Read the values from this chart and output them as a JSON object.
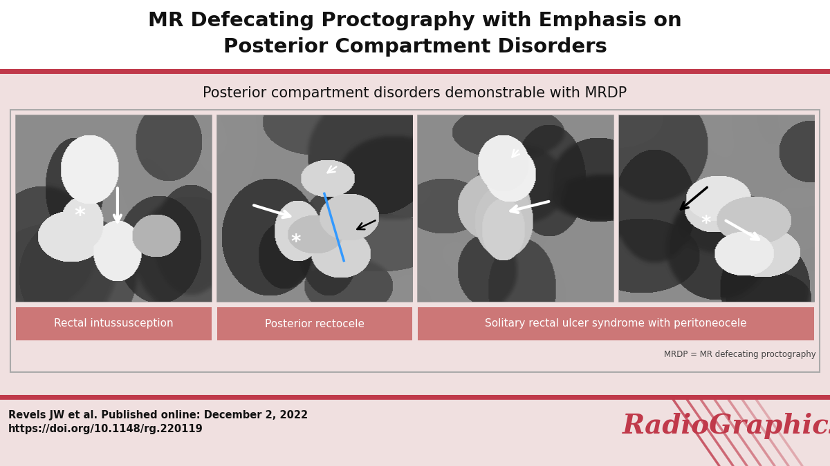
{
  "title_line1": "MR Defecating Proctography with Emphasis on",
  "title_line2": "Posterior Compartment Disorders",
  "subtitle": "Posterior compartment disorders demonstrable with MRDP",
  "bg_color": "#f0e0e0",
  "header_bg": "#ffffff",
  "title_color": "#111111",
  "red_bar_color": "#c0394a",
  "panel_border_color": "#999999",
  "label_bg_color": "#cc7777",
  "label_text_color": "#ffffff",
  "labels": [
    "Rectal intussusception",
    "Posterior rectocele",
    "Solitary rectal ulcer syndrome with peritoneocele"
  ],
  "footnote": "MRDP = MR defecating proctography",
  "citation_line1": "Revels JW et al. Published online: December 2, 2022",
  "citation_line2": "https://doi.org/10.1148/rg.220119",
  "radiographics_color": "#c0394a",
  "outer_border_color": "#aaaaaa",
  "content_bg": "#f0e0e0"
}
